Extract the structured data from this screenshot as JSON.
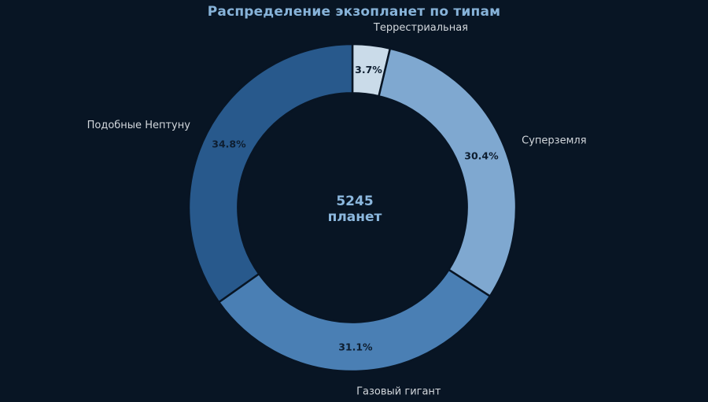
{
  "title": "Распределение экзопланет по типам",
  "center": {
    "line1": "5245",
    "line2": "планет"
  },
  "colors": {
    "background": "#081524",
    "title": "#87b3d9",
    "center_text": "#8cb8de",
    "outer_label": "#d2d7dc",
    "percent_text": "#0e1e30"
  },
  "chart_data": {
    "type": "pie",
    "title": "Распределение экзопланет по типам",
    "hole": 0.7,
    "start_angle_deg": 90,
    "direction": "clockwise",
    "total_label": "5245 планет",
    "total_value": 5245,
    "legend": "none",
    "labels": [
      "Террестриальная",
      "Суперземля",
      "Газовый гигант",
      "Подобные Нептуну"
    ],
    "values": [
      3.7,
      30.4,
      31.1,
      34.8
    ],
    "percent_labels": [
      "3.7%",
      "30.4%",
      "31.1%",
      "34.8%"
    ],
    "colors": [
      "#cadbe9",
      "#7fa8d0",
      "#4a7fb4",
      "#28598c"
    ],
    "label_position": "outside",
    "percent_position": "inside"
  }
}
